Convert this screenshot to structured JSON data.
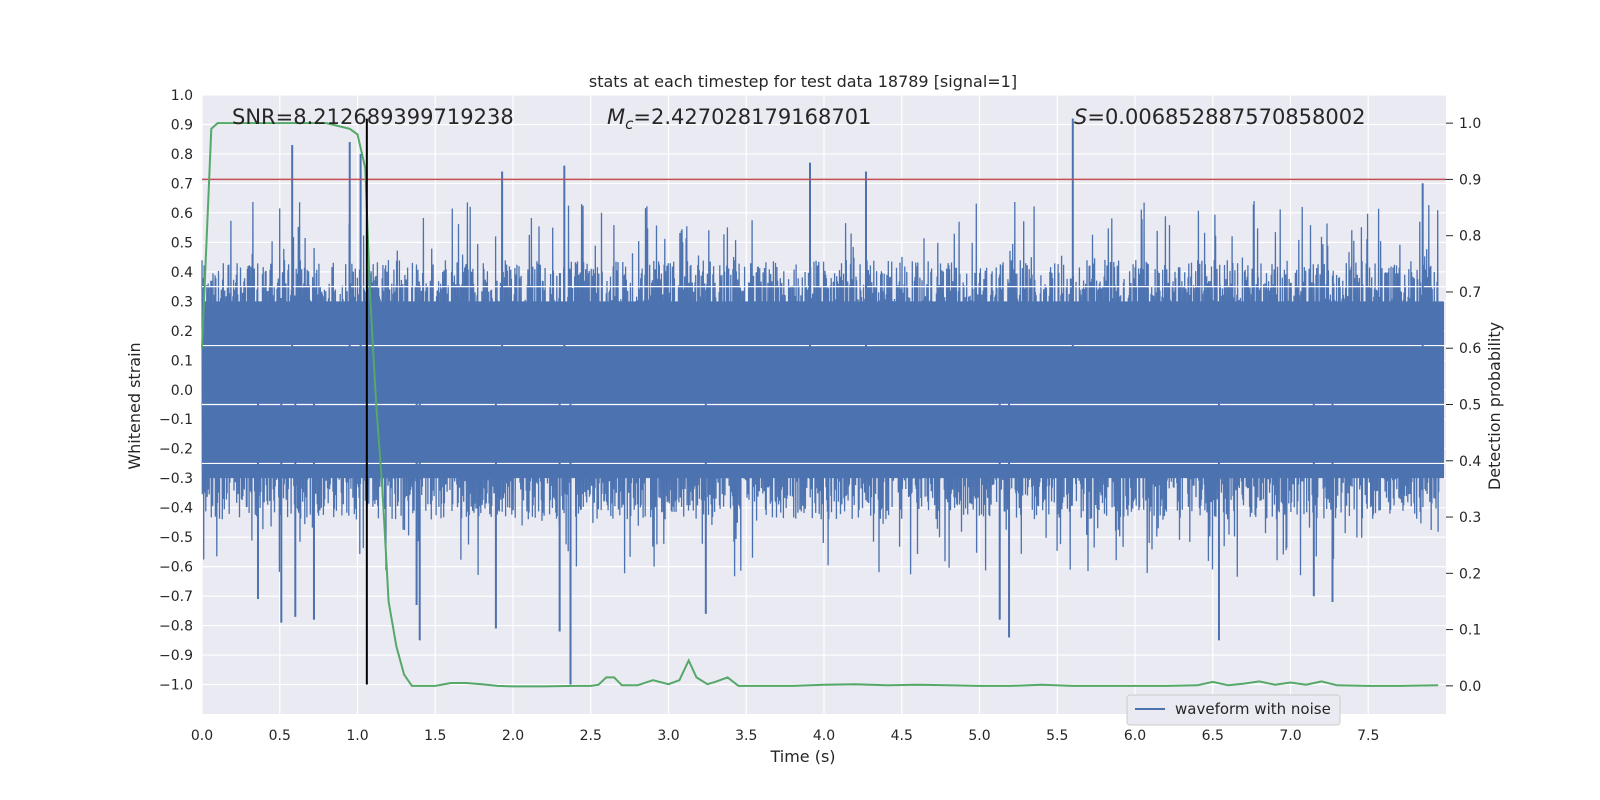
{
  "chart_data": {
    "type": "line",
    "title": "stats at each timestep for test data 18789 [signal=1]",
    "xlabel": "Time (s)",
    "ylabel_left": "Whitened strain",
    "ylabel_right": "Detection probability",
    "xlim": [
      0.0,
      8.0
    ],
    "ylim_left": [
      -1.1,
      1.0
    ],
    "ylim_right": [
      -0.05,
      1.05
    ],
    "x_ticks": [
      "0.0",
      "0.5",
      "1.0",
      "1.5",
      "2.0",
      "2.5",
      "3.0",
      "3.5",
      "4.0",
      "4.5",
      "5.0",
      "5.5",
      "6.0",
      "6.5",
      "7.0",
      "7.5"
    ],
    "y_ticks_left": [
      "1.0",
      "0.9",
      "0.8",
      "0.7",
      "0.6",
      "0.5",
      "0.4",
      "0.3",
      "0.2",
      "0.1",
      "0.0",
      "−0.1",
      "−0.2",
      "−0.3",
      "−0.4",
      "−0.5",
      "−0.6",
      "−0.7",
      "−0.8",
      "−0.9",
      "−1.0"
    ],
    "y_ticks_right": [
      "1.0",
      "0.9",
      "0.8",
      "0.7",
      "0.6",
      "0.5",
      "0.4",
      "0.3",
      "0.2",
      "0.1",
      "0.0"
    ],
    "grid": true,
    "legend_position": "lower-right",
    "annotations": {
      "snr": "SNR=8.212689399719238",
      "mc_symbol": "M",
      "mc_sub": "c",
      "mc_value": "=2.427028179168701",
      "s_symbol": "S",
      "s_value": "=0.006852887570858002"
    },
    "series": [
      {
        "name": "waveform with noise",
        "axis": "left",
        "color": "#4c72b0",
        "style": "dense-noise",
        "envelope_upper": 0.42,
        "envelope_lower": -0.42,
        "peaks": [
          {
            "x": 0.36,
            "y": -0.71
          },
          {
            "x": 0.51,
            "y": -0.79
          },
          {
            "x": 0.58,
            "y": 0.83
          },
          {
            "x": 0.6,
            "y": -0.77
          },
          {
            "x": 0.72,
            "y": -0.78
          },
          {
            "x": 0.95,
            "y": 0.84
          },
          {
            "x": 1.02,
            "y": 0.8
          },
          {
            "x": 1.38,
            "y": -0.73
          },
          {
            "x": 1.4,
            "y": -0.85
          },
          {
            "x": 1.93,
            "y": 0.74
          },
          {
            "x": 1.89,
            "y": -0.81
          },
          {
            "x": 2.3,
            "y": -0.82
          },
          {
            "x": 2.33,
            "y": 0.76
          },
          {
            "x": 2.37,
            "y": -1.0
          },
          {
            "x": 3.24,
            "y": -0.76
          },
          {
            "x": 3.91,
            "y": 0.77
          },
          {
            "x": 4.27,
            "y": 0.74
          },
          {
            "x": 5.13,
            "y": -0.78
          },
          {
            "x": 5.19,
            "y": -0.84
          },
          {
            "x": 5.6,
            "y": 0.92
          },
          {
            "x": 6.54,
            "y": -0.85
          },
          {
            "x": 7.15,
            "y": -0.7
          },
          {
            "x": 7.27,
            "y": -0.72
          },
          {
            "x": 7.85,
            "y": 0.7
          }
        ]
      },
      {
        "name": "",
        "axis": "right",
        "color": "#55a868",
        "x": [
          0.0,
          0.06,
          0.1,
          0.2,
          0.4,
          0.6,
          0.8,
          0.95,
          1.0,
          1.05,
          1.08,
          1.12,
          1.16,
          1.2,
          1.25,
          1.3,
          1.35,
          1.4,
          1.5,
          1.6,
          1.7,
          1.8,
          1.9,
          2.0,
          2.2,
          2.4,
          2.5,
          2.55,
          2.6,
          2.65,
          2.7,
          2.8,
          2.9,
          3.0,
          3.07,
          3.13,
          3.18,
          3.25,
          3.3,
          3.38,
          3.45,
          3.6,
          3.8,
          4.0,
          4.2,
          4.4,
          4.6,
          4.8,
          5.0,
          5.2,
          5.4,
          5.6,
          5.8,
          6.0,
          6.2,
          6.4,
          6.5,
          6.6,
          6.7,
          6.8,
          6.9,
          7.0,
          7.1,
          7.2,
          7.3,
          7.5,
          7.7,
          7.95
        ],
        "y": [
          0.6,
          0.99,
          1.0,
          1.0,
          1.0,
          1.0,
          1.0,
          0.99,
          0.98,
          0.92,
          0.7,
          0.5,
          0.35,
          0.15,
          0.07,
          0.02,
          0.0,
          0.0,
          0.0,
          0.005,
          0.005,
          0.003,
          0.0,
          -0.001,
          -0.001,
          0.0,
          0.0,
          0.002,
          0.015,
          0.015,
          0.001,
          0.001,
          0.01,
          0.003,
          0.01,
          0.045,
          0.015,
          0.003,
          0.007,
          0.015,
          0.0,
          0.0,
          0.0,
          0.002,
          0.003,
          0.001,
          0.002,
          0.001,
          0.0,
          0.0,
          0.002,
          0.0,
          0.0,
          0.0,
          0.0,
          0.001,
          0.007,
          0.001,
          0.004,
          0.008,
          0.002,
          0.006,
          0.002,
          0.008,
          0.001,
          0.0,
          0.0,
          0.001
        ]
      },
      {
        "name": "",
        "axis": "right",
        "color": "#c44e52",
        "style": "hline",
        "y": 0.9
      },
      {
        "name": "",
        "axis": "left",
        "color": "#000000",
        "style": "vline",
        "x": 1.06,
        "y_range": [
          -1.0,
          0.92
        ]
      }
    ]
  }
}
